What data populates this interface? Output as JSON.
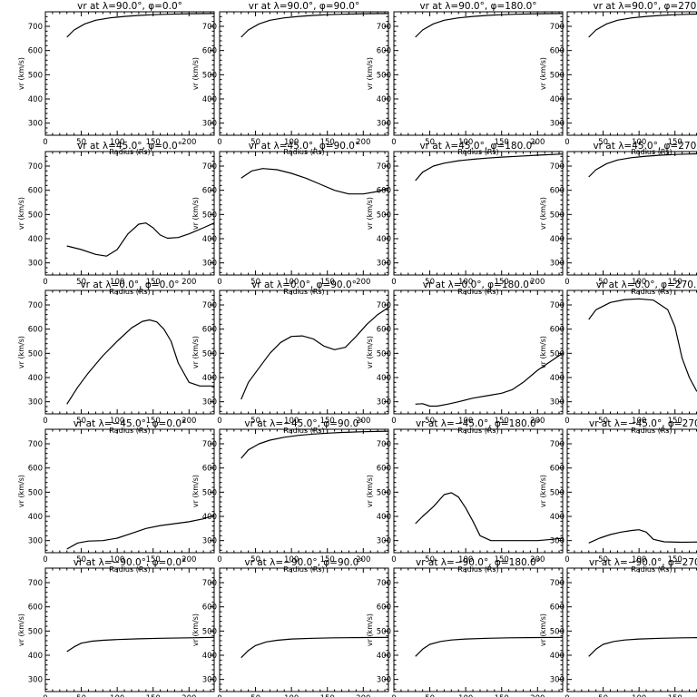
{
  "chart_data": {
    "type": "line",
    "layout": {
      "rows": 5,
      "cols": 4
    },
    "xlabel": "Radius (Rs)",
    "ylabel": "vr (km/s)",
    "xlim": [
      0,
      235
    ],
    "ylim": [
      250,
      760
    ],
    "xticks": [
      0,
      50,
      100,
      150,
      200
    ],
    "yticks": [
      300,
      400,
      500,
      600,
      700
    ],
    "grid": false,
    "panels": [
      {
        "title": "vr at λ=90.0°, φ=0.0°",
        "x": [
          30,
          40,
          55,
          70,
          90,
          110,
          130,
          150,
          170,
          200,
          235
        ],
        "y": [
          655,
          685,
          710,
          725,
          735,
          741,
          745,
          748,
          750,
          752,
          753
        ]
      },
      {
        "title": "vr at λ=90.0°, φ=90.0°",
        "x": [
          30,
          40,
          55,
          70,
          90,
          110,
          130,
          150,
          170,
          200,
          235
        ],
        "y": [
          655,
          685,
          710,
          725,
          735,
          741,
          745,
          748,
          750,
          752,
          753
        ]
      },
      {
        "title": "vr at λ=90.0°, φ=180.0°",
        "x": [
          30,
          40,
          55,
          70,
          90,
          110,
          130,
          150,
          170,
          200,
          235
        ],
        "y": [
          655,
          685,
          710,
          725,
          735,
          741,
          745,
          748,
          750,
          752,
          753
        ]
      },
      {
        "title": "vr at λ=90.0°, φ=270.0°",
        "x": [
          30,
          40,
          55,
          70,
          90,
          110,
          130,
          150,
          170,
          200,
          235
        ],
        "y": [
          655,
          685,
          710,
          725,
          735,
          741,
          745,
          748,
          750,
          752,
          753
        ]
      },
      {
        "title": "vr at λ=45.0°, φ=0.0°",
        "x": [
          30,
          50,
          70,
          85,
          100,
          115,
          130,
          140,
          150,
          160,
          170,
          185,
          200,
          220,
          235
        ],
        "y": [
          370,
          355,
          335,
          328,
          355,
          420,
          460,
          465,
          445,
          415,
          402,
          405,
          420,
          445,
          465
        ]
      },
      {
        "title": "vr at λ=45.0°, φ=90.0°",
        "x": [
          30,
          45,
          60,
          80,
          100,
          120,
          140,
          160,
          180,
          200,
          220,
          235
        ],
        "y": [
          650,
          680,
          690,
          685,
          670,
          650,
          625,
          600,
          585,
          585,
          595,
          610
        ]
      },
      {
        "title": "vr at λ=45.0°, φ=180.0°",
        "x": [
          30,
          40,
          55,
          70,
          90,
          110,
          130,
          150,
          170,
          200,
          235
        ],
        "y": [
          640,
          675,
          700,
          712,
          722,
          728,
          733,
          737,
          740,
          745,
          750
        ]
      },
      {
        "title": "vr at λ=45.0°, φ=270.0°",
        "x": [
          30,
          40,
          55,
          70,
          90,
          110,
          130,
          150,
          170,
          200,
          235
        ],
        "y": [
          655,
          685,
          710,
          725,
          735,
          741,
          745,
          748,
          750,
          752,
          753
        ]
      },
      {
        "title": "vr at λ=0.0°, φ=0.0°",
        "x": [
          30,
          45,
          60,
          80,
          100,
          120,
          135,
          145,
          155,
          165,
          175,
          185,
          200,
          215,
          235
        ],
        "y": [
          290,
          360,
          420,
          490,
          550,
          605,
          632,
          638,
          630,
          600,
          550,
          460,
          380,
          365,
          365
        ]
      },
      {
        "title": "vr at λ=0.0°, φ=90.0°",
        "x": [
          30,
          40,
          55,
          70,
          85,
          100,
          115,
          130,
          145,
          160,
          175,
          190,
          205,
          220,
          235
        ],
        "y": [
          310,
          380,
          440,
          500,
          545,
          570,
          572,
          560,
          530,
          515,
          525,
          570,
          620,
          660,
          690
        ]
      },
      {
        "title": "vr at λ=0.0°, φ=180.0°",
        "x": [
          30,
          40,
          50,
          60,
          75,
          90,
          110,
          130,
          150,
          165,
          180,
          200,
          220,
          235
        ],
        "y": [
          290,
          292,
          282,
          282,
          290,
          300,
          315,
          325,
          335,
          350,
          380,
          430,
          470,
          500
        ]
      },
      {
        "title": "vr at λ=0.0°, φ=270.0°",
        "x": [
          30,
          40,
          60,
          80,
          100,
          120,
          140,
          150,
          160,
          170,
          180,
          200,
          220,
          235
        ],
        "y": [
          640,
          680,
          710,
          722,
          725,
          720,
          680,
          610,
          480,
          400,
          345,
          310,
          300,
          300
        ]
      },
      {
        "title": "vr at λ=−45.0°, φ=0.0°",
        "x": [
          30,
          45,
          60,
          80,
          100,
          120,
          140,
          160,
          180,
          200,
          220,
          235
        ],
        "y": [
          265,
          290,
          298,
          300,
          310,
          330,
          350,
          362,
          370,
          378,
          390,
          405
        ]
      },
      {
        "title": "vr at λ=−45.0°, φ=90.0°",
        "x": [
          30,
          40,
          55,
          70,
          90,
          110,
          130,
          150,
          170,
          200,
          235
        ],
        "y": [
          640,
          675,
          700,
          715,
          727,
          735,
          740,
          744,
          747,
          750,
          752
        ]
      },
      {
        "title": "vr at λ=−45.0°, φ=180.0°",
        "x": [
          30,
          40,
          55,
          70,
          80,
          90,
          100,
          110,
          120,
          135,
          150,
          170,
          200,
          220,
          235
        ],
        "y": [
          370,
          400,
          440,
          490,
          498,
          480,
          435,
          380,
          320,
          300,
          300,
          300,
          300,
          305,
          310
        ]
      },
      {
        "title": "vr at λ=−45.0°, φ=270.0°",
        "x": [
          30,
          45,
          60,
          75,
          90,
          100,
          110,
          120,
          135,
          160,
          200,
          235
        ],
        "y": [
          290,
          310,
          325,
          335,
          342,
          345,
          335,
          305,
          295,
          293,
          295,
          295
        ]
      },
      {
        "title": "vr at λ=−90.0°, φ=0.0°",
        "x": [
          30,
          40,
          50,
          65,
          80,
          100,
          130,
          160,
          200,
          235
        ],
        "y": [
          415,
          435,
          450,
          458,
          462,
          465,
          468,
          470,
          472,
          474
        ]
      },
      {
        "title": "vr at λ=−90.0°, φ=90.0°",
        "x": [
          30,
          40,
          50,
          65,
          80,
          100,
          130,
          160,
          200,
          235
        ],
        "y": [
          390,
          420,
          440,
          455,
          462,
          467,
          470,
          472,
          473,
          474
        ]
      },
      {
        "title": "vr at λ=−90.0°, φ=180.0°",
        "x": [
          30,
          40,
          50,
          65,
          80,
          100,
          130,
          160,
          200,
          235
        ],
        "y": [
          395,
          425,
          445,
          457,
          463,
          467,
          470,
          472,
          473,
          474
        ]
      },
      {
        "title": "vr at λ=−90.0°, φ=270.0°",
        "x": [
          30,
          40,
          50,
          65,
          80,
          100,
          130,
          160,
          200,
          235
        ],
        "y": [
          395,
          425,
          445,
          457,
          463,
          467,
          470,
          472,
          473,
          474
        ]
      }
    ]
  }
}
